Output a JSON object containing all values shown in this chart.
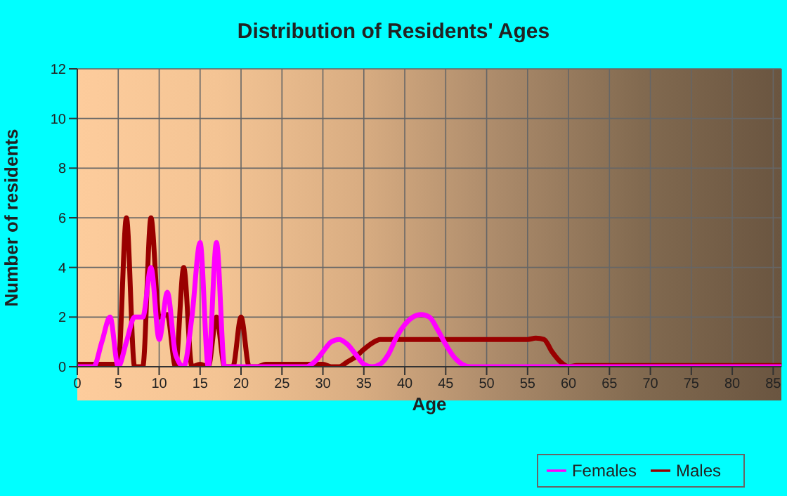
{
  "chart_data": {
    "type": "line",
    "title": "Distribution of Residents' Ages",
    "xlabel": "Age",
    "ylabel": "Number of residents",
    "x": [
      0,
      1,
      2,
      3,
      4,
      5,
      6,
      7,
      8,
      9,
      10,
      11,
      12,
      13,
      14,
      15,
      16,
      17,
      18,
      19,
      20,
      21,
      22,
      23,
      24,
      25,
      26,
      27,
      28,
      29,
      30,
      31,
      32,
      33,
      34,
      35,
      36,
      37,
      38,
      39,
      40,
      41,
      42,
      43,
      44,
      45,
      46,
      47,
      48,
      49,
      50,
      51,
      52,
      53,
      54,
      55,
      56,
      57,
      58,
      59,
      60,
      61,
      62,
      63,
      64,
      65,
      66,
      67,
      68,
      69,
      70,
      71,
      72,
      73,
      74,
      75,
      76,
      77,
      78,
      79,
      80,
      81,
      82,
      83,
      84,
      85,
      86
    ],
    "series": [
      {
        "name": "Males",
        "color": "#990000",
        "values": [
          0.1,
          0.1,
          0.1,
          0.1,
          0.1,
          0.1,
          6,
          0,
          0,
          6,
          2,
          2.1,
          0,
          4,
          0,
          0.1,
          0,
          2,
          0,
          0,
          2,
          0,
          0,
          0.1,
          0.1,
          0.1,
          0.1,
          0.1,
          0.1,
          0.1,
          0.1,
          0,
          0,
          0.2,
          0.4,
          0.7,
          0.95,
          1.1,
          1.1,
          1.1,
          1.1,
          1.1,
          1.1,
          1.1,
          1.1,
          1.1,
          1.1,
          1.1,
          1.1,
          1.1,
          1.1,
          1.1,
          1.1,
          1.1,
          1.1,
          1.1,
          1.15,
          1.1,
          0.6,
          0.2,
          0,
          0.05,
          0.05,
          0.05,
          0.05,
          0.05,
          0.05,
          0.05,
          0.05,
          0.05,
          0.05,
          0.05,
          0.05,
          0.05,
          0.05,
          0.05,
          0.05,
          0.05,
          0.05,
          0.05,
          0.05,
          0.05,
          0.05,
          0.05,
          0.05,
          0.05,
          0.05
        ]
      },
      {
        "name": "Females",
        "color": "#ff00ff",
        "values": [
          0,
          0,
          0,
          1,
          2,
          0,
          1,
          2,
          2,
          4,
          1.1,
          3,
          0.5,
          0,
          2,
          5,
          0,
          5,
          0,
          0,
          0,
          0,
          0,
          0,
          0,
          0,
          0,
          0,
          0,
          0.2,
          0.6,
          1,
          1.1,
          0.9,
          0.5,
          0.1,
          0,
          0.1,
          0.5,
          1.2,
          1.7,
          2,
          2.1,
          2,
          1.5,
          0.9,
          0.4,
          0.1,
          0,
          0,
          0,
          0,
          0,
          0,
          0,
          0,
          0,
          0,
          0,
          0,
          0,
          0,
          0,
          0,
          0,
          0,
          0,
          0,
          0,
          0,
          0,
          0,
          0,
          0,
          0,
          0,
          0,
          0,
          0,
          0,
          0,
          0,
          0,
          0,
          0,
          0,
          0
        ]
      }
    ],
    "xlim": [
      0,
      86
    ],
    "xticks": [
      0,
      5,
      10,
      15,
      20,
      25,
      30,
      35,
      40,
      45,
      50,
      55,
      60,
      65,
      70,
      75,
      80,
      85
    ],
    "ylim": [
      0,
      12
    ],
    "yticks": [
      0,
      2,
      4,
      6,
      8,
      10,
      12
    ],
    "grid": true,
    "legend": "bottom right",
    "marker": "none",
    "line_style": "solid"
  }
}
